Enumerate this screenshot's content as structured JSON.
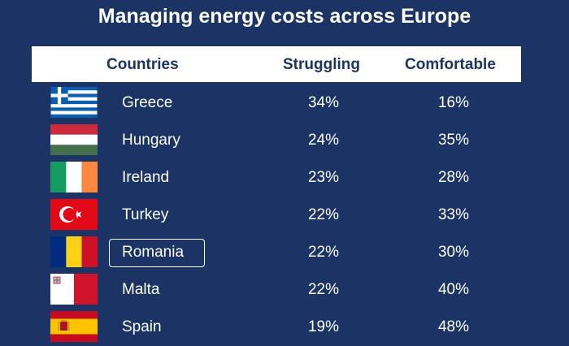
{
  "chart_data": {
    "type": "table",
    "title": "Managing energy costs across Europe",
    "columns": [
      "Countries",
      "Struggling",
      "Comfortable"
    ],
    "rows": [
      {
        "country": "Greece",
        "struggling": "34%",
        "comfortable": "16%",
        "flag": "greece-flag-icon"
      },
      {
        "country": "Hungary",
        "struggling": "24%",
        "comfortable": "35%",
        "flag": "hungary-flag-icon"
      },
      {
        "country": "Ireland",
        "struggling": "23%",
        "comfortable": "28%",
        "flag": "ireland-flag-icon"
      },
      {
        "country": "Turkey",
        "struggling": "22%",
        "comfortable": "33%",
        "flag": "turkey-flag-icon"
      },
      {
        "country": "Romania",
        "struggling": "22%",
        "comfortable": "30%",
        "flag": "romania-flag-icon",
        "highlighted": true
      },
      {
        "country": "Malta",
        "struggling": "22%",
        "comfortable": "40%",
        "flag": "malta-flag-icon"
      },
      {
        "country": "Spain",
        "struggling": "19%",
        "comfortable": "48%",
        "flag": "spain-flag-icon"
      }
    ]
  },
  "colors": {
    "background": "#1c3366",
    "header_bg": "#ffffff",
    "header_text": "#1c3366",
    "text": "#ffffff"
  }
}
